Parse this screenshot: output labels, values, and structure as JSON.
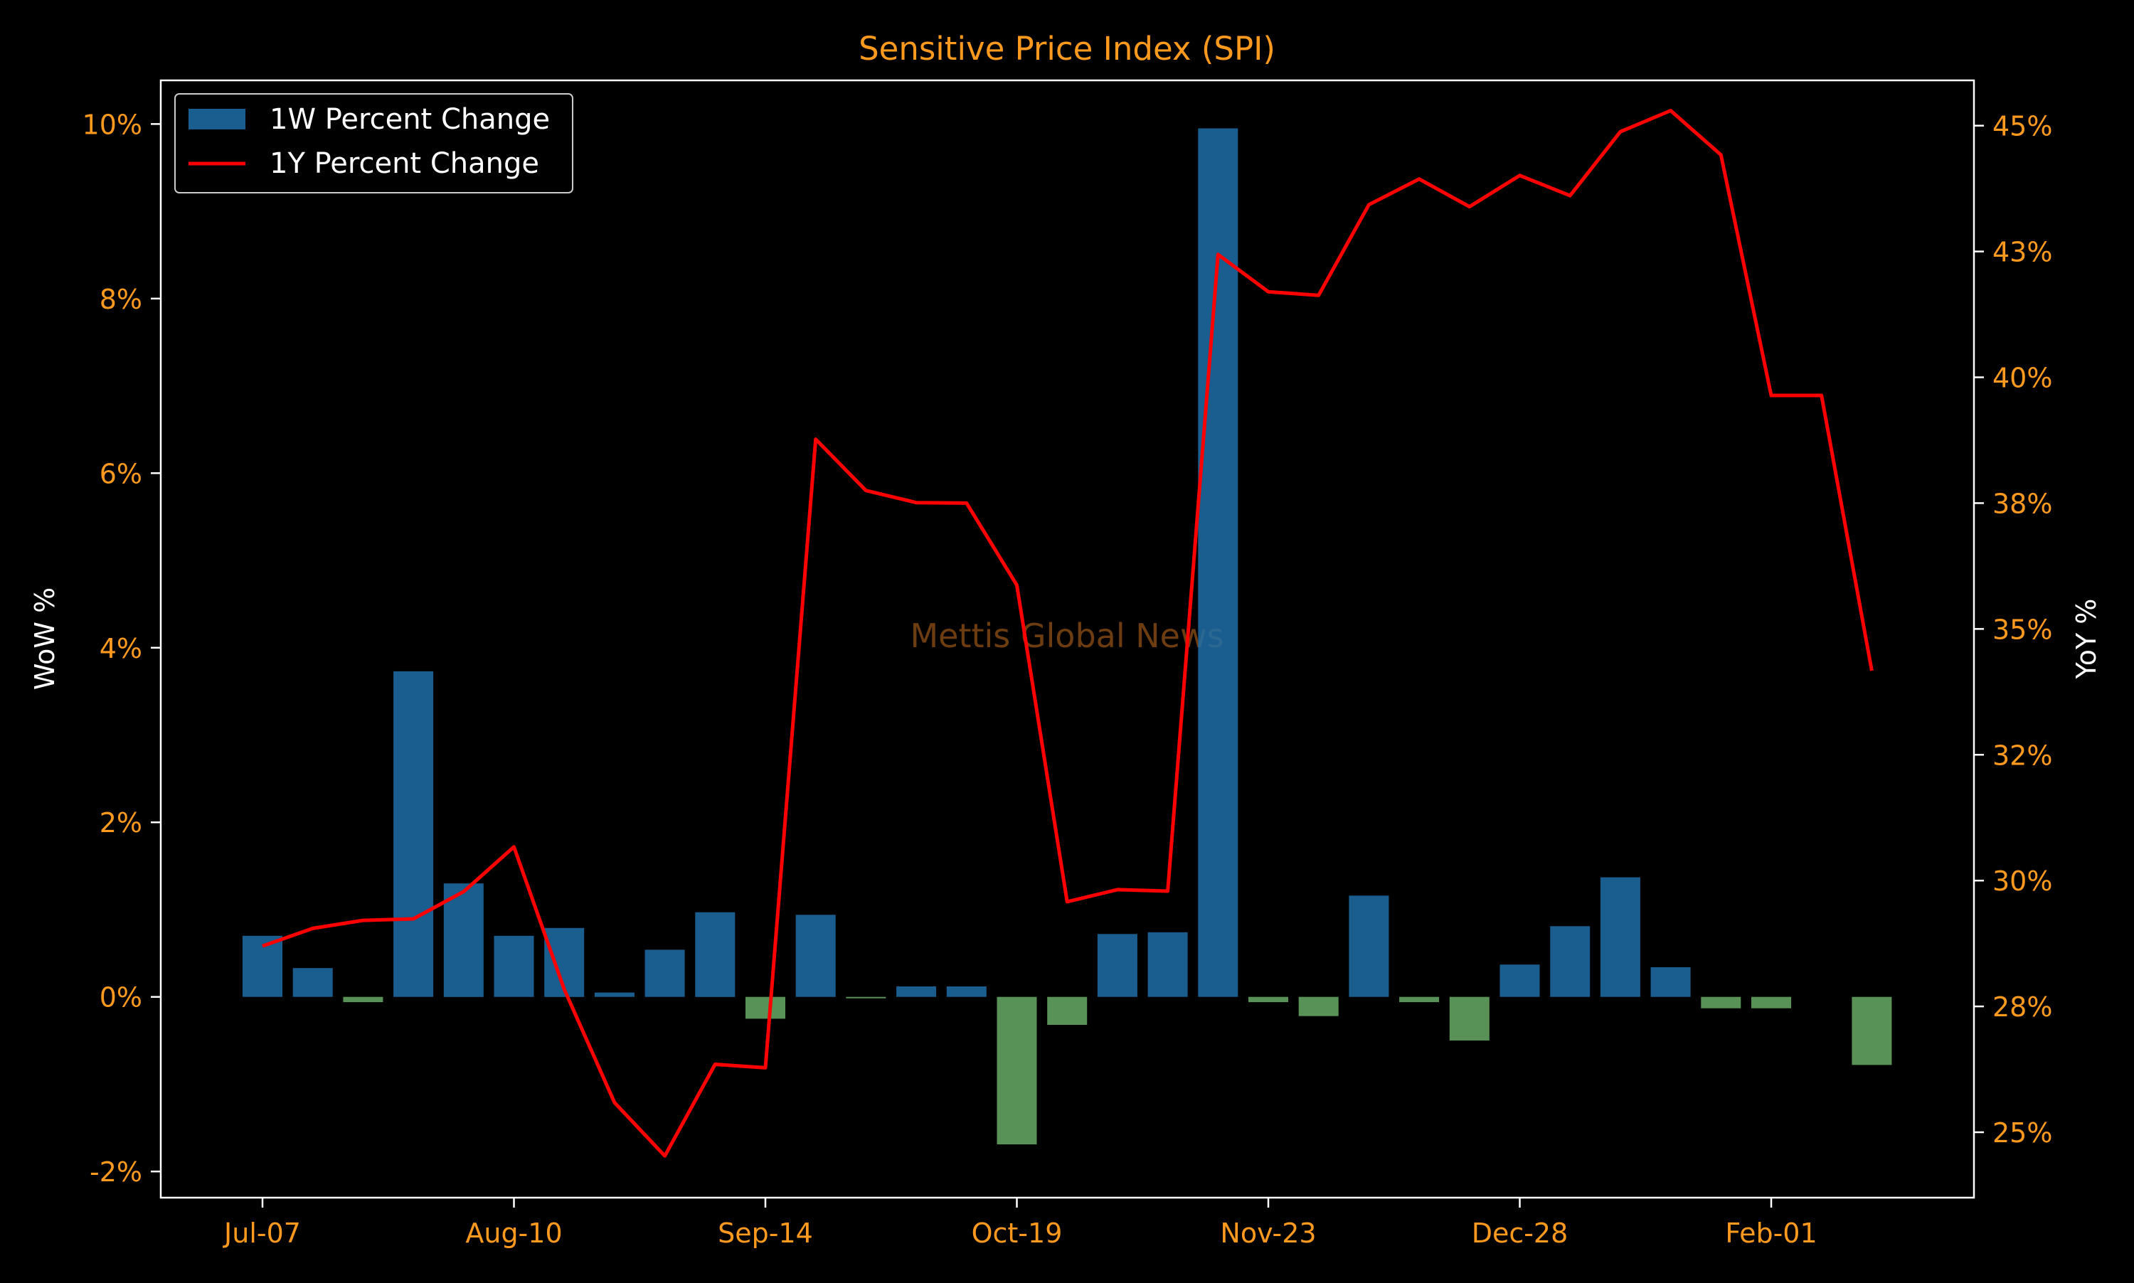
{
  "chart_data": {
    "type": "bar+line",
    "title": "Sensitive Price Index (SPI)",
    "watermark": "Mettis Global News",
    "y_left": {
      "label": "WoW %",
      "range": [
        -2.3,
        10.5
      ],
      "ticks": [
        -2,
        0,
        2,
        4,
        6,
        8,
        10
      ],
      "tick_labels": [
        "-2%",
        "0%",
        "2%",
        "4%",
        "6%",
        "8%",
        "10%"
      ]
    },
    "y_right": {
      "label": "YoY %",
      "range": [
        23.7,
        45.9
      ],
      "ticks": [
        25,
        27.5,
        30,
        32.5,
        35,
        37.5,
        40,
        42.5,
        45
      ],
      "tick_labels": [
        "25%",
        "28%",
        "30%",
        "32%",
        "35%",
        "38%",
        "40%",
        "43%",
        "45%"
      ]
    },
    "x": {
      "tick_labels": [
        "Jul-07",
        "Aug-10",
        "Sep-14",
        "Oct-19",
        "Nov-23",
        "Dec-28",
        "Feb-01"
      ],
      "tick_indices": [
        0,
        5,
        10,
        15,
        20,
        25,
        30
      ]
    },
    "legend": {
      "position": "top-left",
      "entries": [
        {
          "label": "1W Percent Change",
          "kind": "bar"
        },
        {
          "label": "1Y Percent Change",
          "kind": "line"
        }
      ]
    },
    "series": [
      {
        "name": "1W Percent Change",
        "kind": "bar",
        "axis": "left",
        "values": [
          0.7,
          0.33,
          -0.06,
          3.73,
          1.3,
          0.7,
          0.79,
          0.05,
          0.54,
          0.97,
          -0.25,
          0.94,
          -0.01,
          0.12,
          0.12,
          -1.69,
          -0.32,
          0.72,
          0.74,
          9.95,
          -0.06,
          -0.22,
          1.16,
          -0.06,
          -0.5,
          0.37,
          0.81,
          1.37,
          0.34,
          -0.13,
          -0.13,
          null,
          -0.78
        ]
      },
      {
        "name": "1Y Percent Change",
        "kind": "line",
        "axis": "right",
        "values": [
          28.7,
          29.05,
          29.21,
          29.24,
          29.78,
          30.67,
          27.84,
          25.59,
          24.53,
          26.35,
          26.28,
          38.77,
          37.75,
          37.51,
          37.5,
          35.87,
          29.58,
          29.82,
          29.79,
          42.44,
          41.7,
          41.63,
          43.43,
          43.94,
          43.39,
          44.01,
          43.61,
          44.88,
          45.3,
          44.42,
          39.64,
          39.64,
          34.17
        ]
      }
    ],
    "colors": {
      "background": "#000000",
      "positive_bar": "#1f6fa8",
      "negative_bar": "#7fd07a",
      "line": "#ff0000",
      "tick_text": "#ff9a1f",
      "title": "#ff9a1f",
      "axis_label": "#ffffff",
      "frame": "#ffffff",
      "watermark": "#b5651d"
    },
    "grid": false
  }
}
